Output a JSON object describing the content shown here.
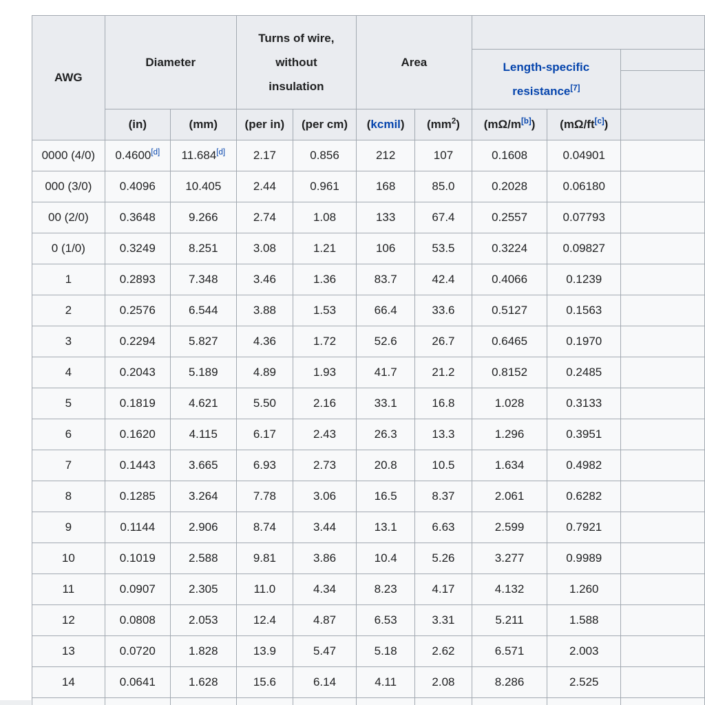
{
  "colors": {
    "link_blue": "#0645ad",
    "header_bg": "#eaecf0",
    "row_bg": "#f8f9fa",
    "border_gray": "#a2a9b1",
    "text": "#202122"
  },
  "header": {
    "awg": "AWG",
    "diameter": "Diameter",
    "turns": "Turns of wire, without insulation",
    "area": "Area",
    "resistance_link": "Length-specific resistance",
    "resistance_ref": "[7]",
    "sub": {
      "in": "(in)",
      "mm": "(mm)",
      "per_in": "(per in)",
      "per_cm": "(per cm)",
      "kcmil_pre": "(",
      "kcmil_link": "kcmil",
      "kcmil_post": ")",
      "mm2_pre": "(mm",
      "mm2_sup": "2",
      "mm2_post": ")",
      "mohm_m_pre": "(mΩ/m",
      "mohm_m_ref": "[b]",
      "mohm_m_post": ")",
      "mohm_ft_pre": "(mΩ/ft",
      "mohm_ft_ref": "[c]",
      "mohm_ft_post": ")"
    }
  },
  "rows": [
    {
      "cells": [
        "0000 (4/0)",
        "0.4600",
        "11.684",
        "2.17",
        "0.856",
        "212",
        "107",
        "0.1608",
        "0.04901"
      ],
      "sup": {
        "1": "[d]",
        "2": "[d]"
      }
    },
    {
      "cells": [
        "000 (3/0)",
        "0.4096",
        "10.405",
        "2.44",
        "0.961",
        "168",
        "85.0",
        "0.2028",
        "0.06180"
      ]
    },
    {
      "cells": [
        "00 (2/0)",
        "0.3648",
        "9.266",
        "2.74",
        "1.08",
        "133",
        "67.4",
        "0.2557",
        "0.07793"
      ]
    },
    {
      "cells": [
        "0 (1/0)",
        "0.3249",
        "8.251",
        "3.08",
        "1.21",
        "106",
        "53.5",
        "0.3224",
        "0.09827"
      ]
    },
    {
      "cells": [
        "1",
        "0.2893",
        "7.348",
        "3.46",
        "1.36",
        "83.7",
        "42.4",
        "0.4066",
        "0.1239"
      ]
    },
    {
      "cells": [
        "2",
        "0.2576",
        "6.544",
        "3.88",
        "1.53",
        "66.4",
        "33.6",
        "0.5127",
        "0.1563"
      ]
    },
    {
      "cells": [
        "3",
        "0.2294",
        "5.827",
        "4.36",
        "1.72",
        "52.6",
        "26.7",
        "0.6465",
        "0.1970"
      ]
    },
    {
      "cells": [
        "4",
        "0.2043",
        "5.189",
        "4.89",
        "1.93",
        "41.7",
        "21.2",
        "0.8152",
        "0.2485"
      ]
    },
    {
      "cells": [
        "5",
        "0.1819",
        "4.621",
        "5.50",
        "2.16",
        "33.1",
        "16.8",
        "1.028",
        "0.3133"
      ]
    },
    {
      "cells": [
        "6",
        "0.1620",
        "4.115",
        "6.17",
        "2.43",
        "26.3",
        "13.3",
        "1.296",
        "0.3951"
      ]
    },
    {
      "cells": [
        "7",
        "0.1443",
        "3.665",
        "6.93",
        "2.73",
        "20.8",
        "10.5",
        "1.634",
        "0.4982"
      ]
    },
    {
      "cells": [
        "8",
        "0.1285",
        "3.264",
        "7.78",
        "3.06",
        "16.5",
        "8.37",
        "2.061",
        "0.6282"
      ]
    },
    {
      "cells": [
        "9",
        "0.1144",
        "2.906",
        "8.74",
        "3.44",
        "13.1",
        "6.63",
        "2.599",
        "0.7921"
      ]
    },
    {
      "cells": [
        "10",
        "0.1019",
        "2.588",
        "9.81",
        "3.86",
        "10.4",
        "5.26",
        "3.277",
        "0.9989"
      ]
    },
    {
      "cells": [
        "11",
        "0.0907",
        "2.305",
        "11.0",
        "4.34",
        "8.23",
        "4.17",
        "4.132",
        "1.260"
      ]
    },
    {
      "cells": [
        "12",
        "0.0808",
        "2.053",
        "12.4",
        "4.87",
        "6.53",
        "3.31",
        "5.211",
        "1.588"
      ]
    },
    {
      "cells": [
        "13",
        "0.0720",
        "1.828",
        "13.9",
        "5.47",
        "5.18",
        "2.62",
        "6.571",
        "2.003"
      ]
    },
    {
      "cells": [
        "14",
        "0.0641",
        "1.628",
        "15.6",
        "6.14",
        "4.11",
        "2.08",
        "8.286",
        "2.525"
      ]
    }
  ]
}
